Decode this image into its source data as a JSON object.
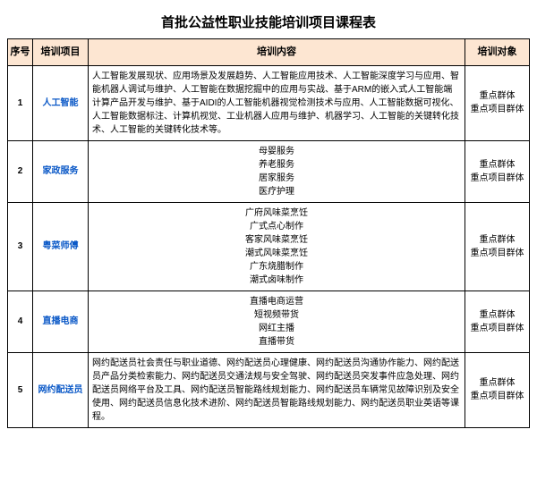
{
  "title": "首批公益性职业技能培训项目课程表",
  "headers": {
    "seq": "序号",
    "project": "培训项目",
    "content": "培训内容",
    "target": "培训对象"
  },
  "colors": {
    "header_bg": "#fde6d2",
    "border": "#000000",
    "project_text": "#0a58c7",
    "page_bg": "#ffffff"
  },
  "rows": [
    {
      "seq": "1",
      "project": "人工智能",
      "content_align": "left",
      "content_lines": [
        "人工智能发展现状、应用场景及发展趋势、人工智能应用技术、人工智能深度学习与应用、智能机器人调试与维护、人工智能在数据挖掘中的应用与实战、基于ARM的嵌入式人工智能端计算产品开发与维护、基于AIDI的人工智能机器视觉检测技术与应用、人工智能数据可视化、人工智能数据标注、计算机视觉、工业机器人应用与维护、机器学习、人工智能的关键转化技术、人工智能的关键转化技术等。"
      ],
      "target_lines": [
        "重点群体",
        "重点项目群体"
      ]
    },
    {
      "seq": "2",
      "project": "家政服务",
      "content_align": "center",
      "content_lines": [
        "母婴服务",
        "养老服务",
        "居家服务",
        "医疗护理"
      ],
      "target_lines": [
        "重点群体",
        "重点项目群体"
      ]
    },
    {
      "seq": "3",
      "project": "粤菜师傅",
      "content_align": "center",
      "content_lines": [
        "广府风味菜烹饪",
        "广式点心制作",
        "客家风味菜烹饪",
        "潮式风味菜烹饪",
        "广东烧腊制作",
        "潮式卤味制作"
      ],
      "target_lines": [
        "重点群体",
        "重点项目群体"
      ]
    },
    {
      "seq": "4",
      "project": "直播电商",
      "content_align": "center",
      "content_lines": [
        "直播电商运营",
        "短视频带货",
        "网红主播",
        "直播带货"
      ],
      "target_lines": [
        "重点群体",
        "重点项目群体"
      ]
    },
    {
      "seq": "5",
      "project": "网约配送员",
      "content_align": "left",
      "content_lines": [
        "网约配送员社会责任与职业道德、网约配送员心理健康、网约配送员沟通协作能力、网约配送员产品分类检索能力、网约配送员交通法规与安全驾驶、网约配送员突发事件应急处理、网约配送员网络平台及工具、网约配送员智能路线规划能力、网约配送员车辆常见故障识别及安全使用、网约配送员信息化技术进阶、网约配送员智能路线规划能力、网约配送员职业英语等课程。"
      ],
      "target_lines": [
        "重点群体",
        "重点项目群体"
      ]
    }
  ]
}
